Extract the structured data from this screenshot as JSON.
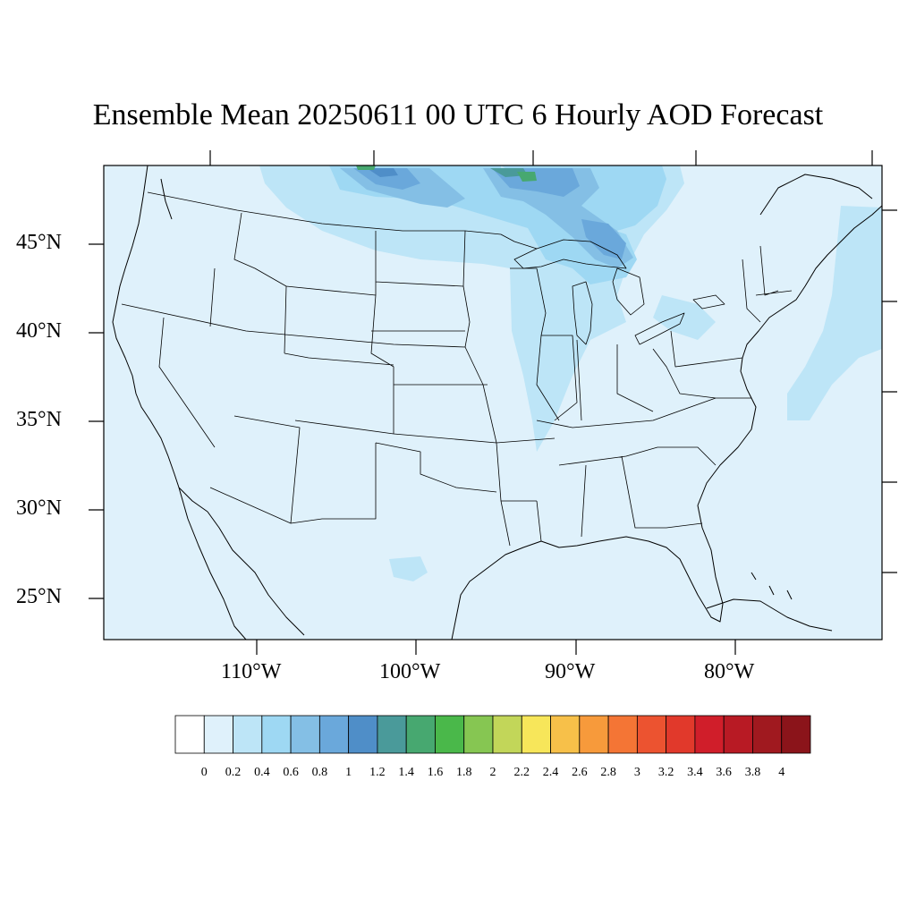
{
  "title": "Ensemble Mean 20250611 00 UTC 6 Hourly AOD Forecast",
  "map": {
    "projection": "lambert-conformal",
    "region": "CONUS",
    "lat_labels": [
      "45°N",
      "40°N",
      "35°N",
      "30°N",
      "25°N"
    ],
    "lon_labels": [
      "110°W",
      "100°W",
      "90°W",
      "80°W"
    ],
    "background_color": "#dff1fb",
    "features": [
      {
        "name": "smoke-plume-north-dakota-minnesota",
        "level": "0.4-1.6"
      },
      {
        "name": "smoke-plume-lake-superior-michigan",
        "level": "0.6-1.2"
      },
      {
        "name": "smoke-plume-canada-ontario",
        "level": "0.8-1.8"
      },
      {
        "name": "smoke-plume-atlantic-offshore",
        "level": "0.2-0.4"
      },
      {
        "name": "smoke-patch-south-texas",
        "level": "0.2-0.4"
      }
    ]
  },
  "colorbar": {
    "labels": [
      "0",
      "0.2",
      "0.4",
      "0.6",
      "0.8",
      "1",
      "1.2",
      "1.4",
      "1.6",
      "1.8",
      "2",
      "2.2",
      "2.4",
      "2.6",
      "2.8",
      "3",
      "3.2",
      "3.4",
      "3.6",
      "3.8",
      "4"
    ],
    "colors": [
      "#ffffff",
      "#dff1fb",
      "#bde5f7",
      "#9ed8f3",
      "#84bfe5",
      "#6aa8db",
      "#4f8ec8",
      "#4a9a9a",
      "#47a870",
      "#4ab84a",
      "#86c652",
      "#c2d659",
      "#f7e65a",
      "#f7c049",
      "#f79a3b",
      "#f47535",
      "#ec5330",
      "#e1392b",
      "#d01e2a",
      "#b81a24",
      "#a0191f",
      "#8b141a"
    ]
  }
}
